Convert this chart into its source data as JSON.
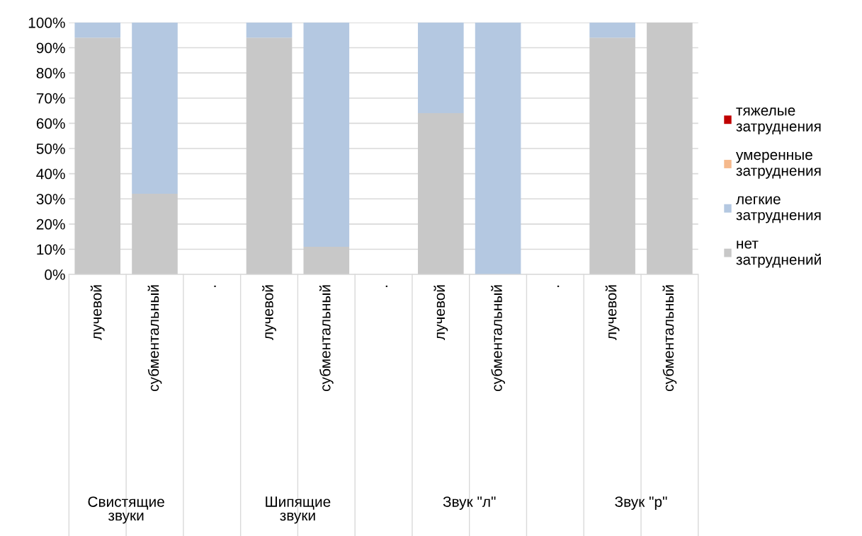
{
  "chart_data": {
    "type": "bar",
    "stacked": true,
    "categories": [
      "лучевой",
      "субментальный",
      ".",
      "лучевой",
      "субментальный",
      ".",
      "лучевой",
      "субментальный",
      ".",
      "лучевой",
      "субментальный"
    ],
    "series": [
      {
        "name": "нет затруднений",
        "color": "#c8c8c8",
        "values": [
          94,
          32,
          null,
          94,
          11,
          null,
          64,
          0,
          null,
          94,
          100
        ]
      },
      {
        "name": "легкие затруднения",
        "color": "#b4c8e1",
        "values": [
          6,
          68,
          null,
          6,
          89,
          null,
          36,
          100,
          null,
          6,
          0
        ]
      },
      {
        "name": "умеренные затруднения",
        "color": "#f5b98c",
        "values": [
          0,
          0,
          null,
          0,
          0,
          null,
          0,
          0,
          null,
          0,
          0
        ]
      },
      {
        "name": "тяжелые затруднения",
        "color": "#c00000",
        "values": [
          0,
          0,
          null,
          0,
          0,
          null,
          0,
          0,
          null,
          0,
          0
        ]
      }
    ],
    "ylim": [
      0,
      100
    ],
    "yticks": [
      {
        "value": 0,
        "label": "0%"
      },
      {
        "value": 10,
        "label": "10%"
      },
      {
        "value": 20,
        "label": "20%"
      },
      {
        "value": 30,
        "label": "30%"
      },
      {
        "value": 40,
        "label": "40%"
      },
      {
        "value": 50,
        "label": "50%"
      },
      {
        "value": 60,
        "label": "60%"
      },
      {
        "value": 70,
        "label": "70%"
      },
      {
        "value": 80,
        "label": "80%"
      },
      {
        "value": 90,
        "label": "90%"
      },
      {
        "value": 100,
        "label": "100%"
      }
    ],
    "grid": "y",
    "legend": "right",
    "annotations": [
      "Свистящие звуки",
      "Шипящие звуки",
      "Звук \"л\"",
      "Звук \"р\""
    ]
  }
}
